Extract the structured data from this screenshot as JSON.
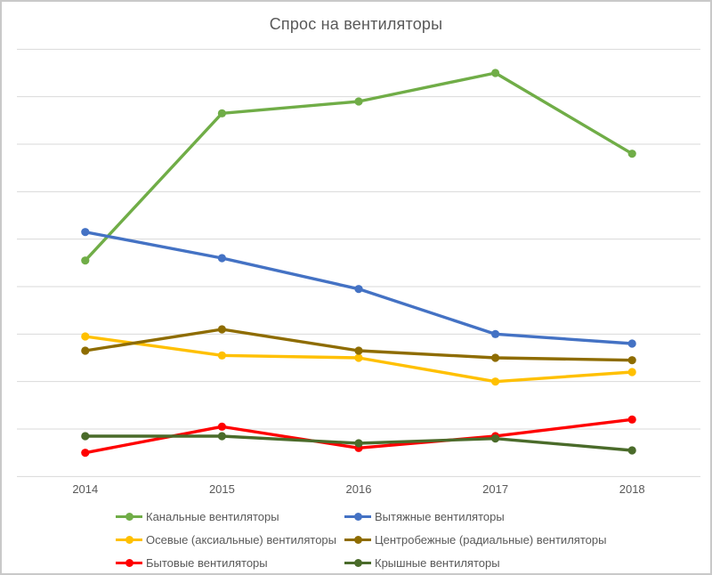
{
  "title": "Спрос на вентиляторы",
  "chart_data": {
    "type": "line",
    "title": "Спрос на вентиляторы",
    "categories": [
      "2014",
      "2015",
      "2016",
      "2017",
      "2018"
    ],
    "series": [
      {
        "name": "Канальные вентиляторы",
        "color": "#70AD47",
        "values": [
          4.55,
          7.65,
          7.9,
          8.5,
          6.8
        ]
      },
      {
        "name": "Вытяжные вентиляторы",
        "color": "#4472C4",
        "values": [
          5.15,
          4.6,
          3.95,
          3.0,
          2.8
        ]
      },
      {
        "name": "Осевые (аксиальные) вентиляторы",
        "color": "#FFC000",
        "values": [
          2.95,
          2.55,
          2.5,
          2.0,
          2.2
        ]
      },
      {
        "name": "Центробежные (радиальные) вентиляторы",
        "color": "#8E6C00",
        "values": [
          2.65,
          3.1,
          2.65,
          2.5,
          2.45
        ]
      },
      {
        "name": "Бытовые вентиляторы",
        "color": "#FF0000",
        "values": [
          0.5,
          1.05,
          0.6,
          0.85,
          1.2
        ]
      },
      {
        "name": "Крышные вентиляторы",
        "color": "#4A6B2A",
        "values": [
          0.85,
          0.85,
          0.7,
          0.8,
          0.55
        ]
      }
    ],
    "xlabel": "",
    "ylabel": "",
    "ylim": [
      0,
      9
    ],
    "ytick_step": 1,
    "y_axis_labels_visible": false,
    "grid": true,
    "legend_position": "bottom"
  },
  "colors": {
    "background": "#FFFFFF",
    "border": "#C9C9C9",
    "gridline": "#D9D9D9",
    "title_text": "#595959",
    "axis_text": "#595959",
    "legend_text": "#595959"
  }
}
